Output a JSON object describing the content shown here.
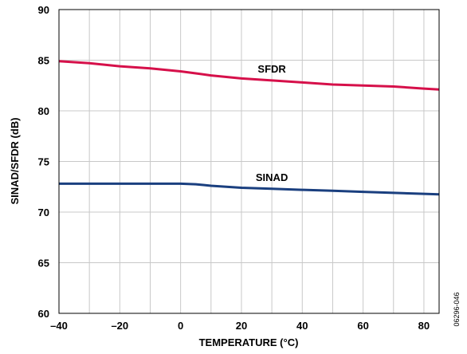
{
  "figure_id": "06296-046",
  "chart_data": {
    "type": "line",
    "xlabel": "TEMPERATURE (°C)",
    "ylabel": "SINAD/SFDR (dB)",
    "xlim": [
      -40,
      85
    ],
    "ylim": [
      60,
      90
    ],
    "xticks": [
      -40,
      -20,
      0,
      20,
      40,
      60,
      80
    ],
    "xtick_labels": [
      "–40",
      "–20",
      "0",
      "20",
      "40",
      "60",
      "80"
    ],
    "yticks": [
      60,
      65,
      70,
      75,
      80,
      85,
      90
    ],
    "ytick_labels": [
      "60",
      "65",
      "70",
      "75",
      "80",
      "85",
      "90"
    ],
    "grid": true,
    "series": [
      {
        "name": "SFDR",
        "color": "#d6104a",
        "x": [
          -40,
          -30,
          -20,
          -10,
          0,
          5,
          10,
          20,
          30,
          40,
          50,
          60,
          70,
          80,
          85
        ],
        "y": [
          84.9,
          84.7,
          84.4,
          84.2,
          83.9,
          83.7,
          83.5,
          83.2,
          83.0,
          82.8,
          82.6,
          82.5,
          82.4,
          82.2,
          82.1
        ]
      },
      {
        "name": "SINAD",
        "color": "#1a3f7f",
        "x": [
          -40,
          -30,
          -20,
          -10,
          0,
          5,
          10,
          20,
          30,
          40,
          50,
          60,
          70,
          80,
          85
        ],
        "y": [
          72.8,
          72.8,
          72.8,
          72.8,
          72.8,
          72.75,
          72.6,
          72.4,
          72.3,
          72.2,
          72.1,
          72.0,
          71.9,
          71.8,
          71.75
        ]
      }
    ]
  }
}
